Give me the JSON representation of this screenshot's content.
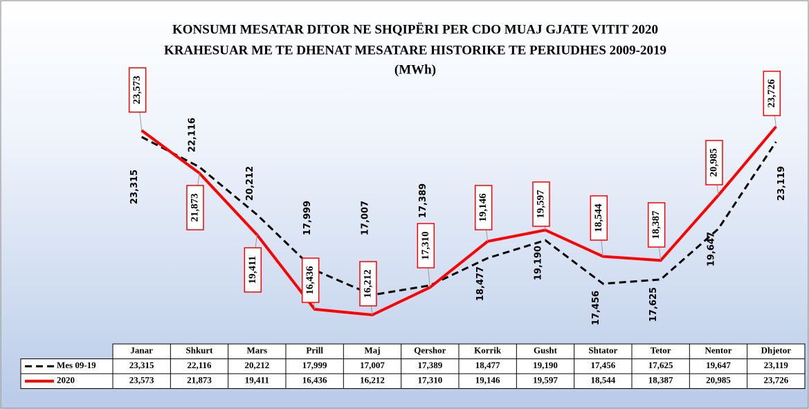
{
  "chart_data": {
    "type": "line",
    "title": "KONSUMI MESATAR DITOR NE SHQIPËRI PER CDO MUAJ GJATE VITIT 2020",
    "subtitle": "KRAHESUAR ME TE DHENAT MESATARE HISTORIKE TE PERIUDHES 2009-2019",
    "unit": "(MWh)",
    "categories": [
      "Janar",
      "Shkurt",
      "Mars",
      "Prill",
      "Maj",
      "Qershor",
      "Korrik",
      "Gusht",
      "Shtator",
      "Tetor",
      "Nentor",
      "Dhjetor"
    ],
    "series": [
      {
        "name": "Mes 09-19",
        "color": "#000000",
        "dash": true,
        "values": [
          23315,
          22116,
          20212,
          17999,
          17007,
          17389,
          18477,
          19190,
          17456,
          17625,
          19647,
          23119
        ],
        "value_labels": [
          "23,315",
          "22,116",
          "20,212",
          "17,999",
          "17,007",
          "17,389",
          "18,477",
          "19,190",
          "17,456",
          "17,625",
          "19,647",
          "23,119"
        ]
      },
      {
        "name": "2020",
        "color": "#ff0000",
        "dash": false,
        "values": [
          23573,
          21873,
          19411,
          16436,
          16212,
          17310,
          19146,
          19597,
          18544,
          18387,
          20985,
          23726
        ],
        "value_labels": [
          "23,573",
          "21,873",
          "19,411",
          "16,436",
          "16,212",
          "17,310",
          "19,146",
          "19,597",
          "18,544",
          "18,387",
          "20,985",
          "23,726"
        ]
      }
    ]
  }
}
